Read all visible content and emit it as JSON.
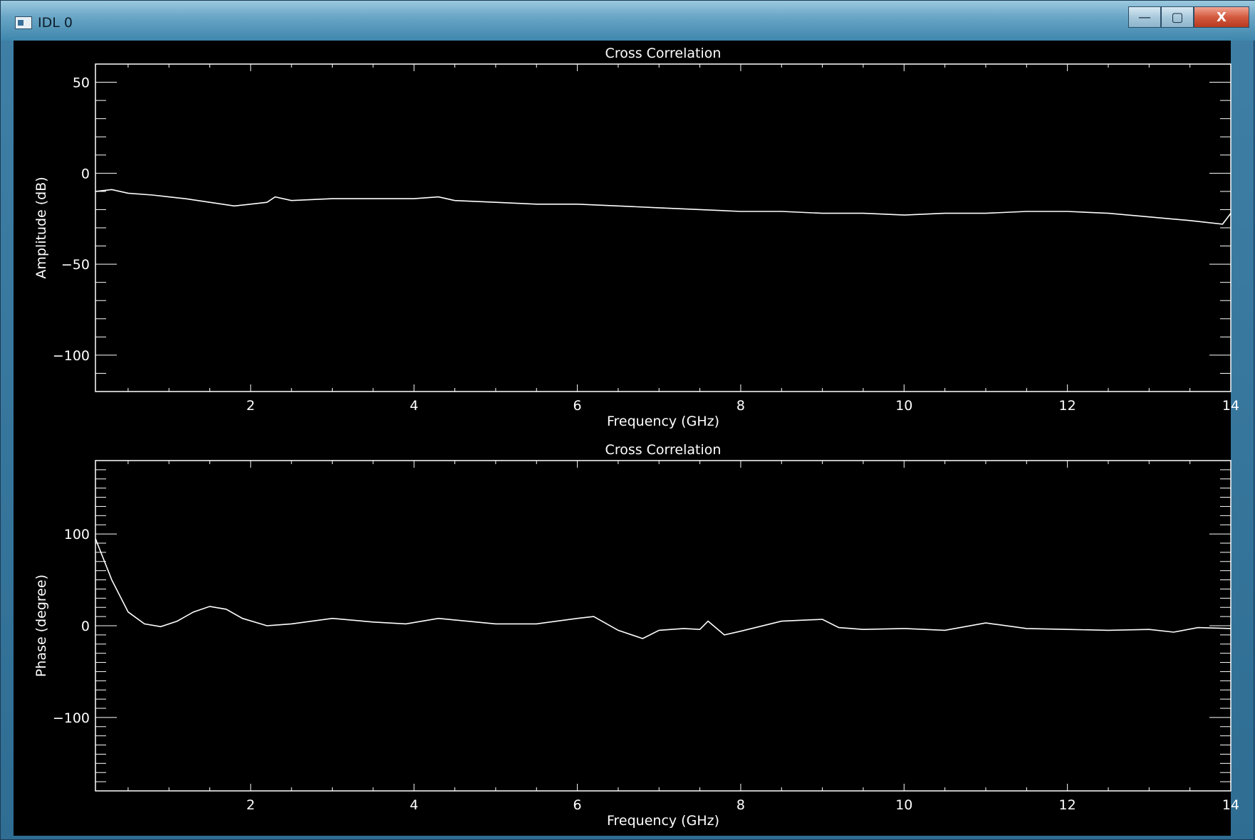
{
  "window": {
    "title": "IDL 0"
  },
  "controls": {
    "minimize": "—",
    "maximize": "▢",
    "close": "X"
  },
  "colors": {
    "background": "#000000",
    "foreground": "#ffffff"
  },
  "icons": [
    "app-icon",
    "minimize-icon",
    "maximize-icon",
    "close-icon"
  ],
  "chart_data": [
    {
      "type": "line",
      "title": "Cross Correlation",
      "xlabel": "Frequency (GHz)",
      "ylabel": "Amplitude (dB)",
      "xlim": [
        0.1,
        14
      ],
      "ylim": [
        -120,
        60
      ],
      "xticks": [
        2,
        4,
        6,
        8,
        10,
        12,
        14
      ],
      "yticks": [
        50,
        0,
        -50,
        -100
      ],
      "xtick_labels": [
        "2",
        "4",
        "6",
        "8",
        "10",
        "12",
        "14"
      ],
      "ytick_labels": [
        "50",
        "0",
        "−50",
        "−100"
      ],
      "grid": false,
      "series": [
        {
          "x": [
            0.1,
            0.3,
            0.5,
            0.8,
            1,
            1.2,
            1.5,
            1.8,
            2,
            2.2,
            2.3,
            2.5,
            3,
            3.5,
            4,
            4.3,
            4.5,
            5,
            5.5,
            6,
            6.5,
            7,
            7.5,
            8,
            8.5,
            9,
            9.5,
            10,
            10.5,
            11,
            11.5,
            12,
            12.5,
            13,
            13.5,
            13.9,
            14
          ],
          "y": [
            -10,
            -9,
            -11,
            -12,
            -13,
            -14,
            -16,
            -18,
            -17,
            -16,
            -13,
            -15,
            -14,
            -14,
            -14,
            -13,
            -15,
            -16,
            -17,
            -17,
            -18,
            -19,
            -20,
            -21,
            -21,
            -22,
            -22,
            -23,
            -22,
            -22,
            -21,
            -21,
            -22,
            -24,
            -26,
            -28,
            -22
          ]
        }
      ]
    },
    {
      "type": "line",
      "title": "Cross Correlation",
      "xlabel": "Frequency (GHz)",
      "ylabel": "Phase (degree)",
      "xlim": [
        0.1,
        14
      ],
      "ylim": [
        -180,
        180
      ],
      "xticks": [
        2,
        4,
        6,
        8,
        10,
        12,
        14
      ],
      "yticks": [
        100,
        0,
        -100
      ],
      "xtick_labels": [
        "2",
        "4",
        "6",
        "8",
        "10",
        "12",
        "14"
      ],
      "ytick_labels": [
        "100",
        "0",
        "−100"
      ],
      "grid": false,
      "series": [
        {
          "x": [
            0.1,
            0.3,
            0.5,
            0.7,
            0.9,
            1.1,
            1.3,
            1.5,
            1.7,
            1.9,
            2.2,
            2.5,
            3,
            3.5,
            3.9,
            4.3,
            5,
            5.5,
            6,
            6.2,
            6.5,
            6.8,
            7,
            7.3,
            7.5,
            7.6,
            7.8,
            8,
            8.5,
            9,
            9.2,
            9.5,
            10,
            10.5,
            11,
            11.5,
            12,
            12.5,
            13,
            13.3,
            13.6,
            14
          ],
          "y": [
            95,
            50,
            15,
            2,
            -1,
            5,
            15,
            21,
            18,
            8,
            0,
            2,
            8,
            4,
            2,
            8,
            2,
            2,
            8,
            10,
            -5,
            -14,
            -5,
            -3,
            -4,
            5,
            -10,
            -6,
            5,
            7,
            -2,
            -4,
            -3,
            -5,
            3,
            -3,
            -4,
            -5,
            -4,
            -7,
            -2,
            -3
          ]
        }
      ]
    }
  ]
}
